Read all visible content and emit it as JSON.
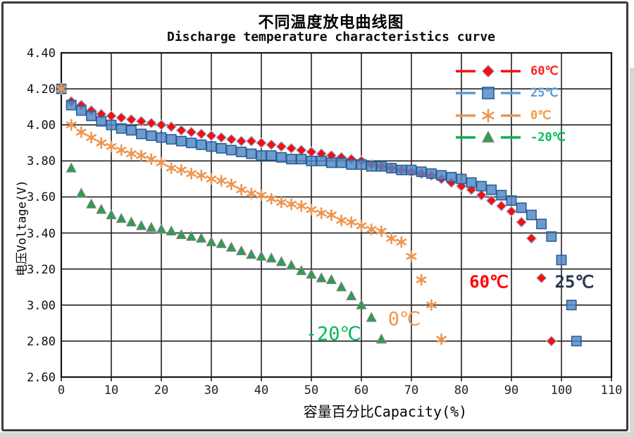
{
  "chart_data": {
    "type": "scatter",
    "title": "不同温度放电曲线图",
    "subtitle": "Discharge temperature characteristics curve",
    "xlabel": "容量百分比Capacity(%)",
    "ylabel": "电压Voltage(V)",
    "xlim": [
      0,
      110
    ],
    "ylim": [
      2.6,
      4.4
    ],
    "x_ticks": [
      "0",
      "10",
      "20",
      "30",
      "40",
      "50",
      "60",
      "70",
      "80",
      "90",
      "100",
      "110"
    ],
    "y_ticks": [
      "4.40",
      "4.20",
      "4.00",
      "3.80",
      "3.60",
      "3.40",
      "3.20",
      "3.00",
      "2.80",
      "2.60"
    ],
    "grid": true,
    "legend_position": "top-right-inside",
    "series": [
      {
        "id": "60c",
        "name": "60℃",
        "marker": "diamond",
        "color": "#f50f0f",
        "edge": "#9dc3e6",
        "x": [
          0,
          2,
          4,
          6,
          8,
          10,
          12,
          14,
          16,
          18,
          20,
          22,
          24,
          26,
          28,
          30,
          32,
          34,
          36,
          38,
          40,
          42,
          44,
          46,
          48,
          50,
          52,
          54,
          56,
          58,
          60,
          62,
          64,
          66,
          68,
          70,
          72,
          74,
          76,
          78,
          80,
          82,
          84,
          86,
          88,
          90,
          92,
          94,
          96,
          98
        ],
        "y": [
          4.2,
          4.13,
          4.11,
          4.08,
          4.06,
          4.05,
          4.04,
          4.03,
          4.02,
          4.01,
          4.0,
          3.99,
          3.97,
          3.96,
          3.95,
          3.94,
          3.93,
          3.92,
          3.91,
          3.91,
          3.9,
          3.89,
          3.88,
          3.87,
          3.86,
          3.85,
          3.84,
          3.83,
          3.82,
          3.81,
          3.8,
          3.78,
          3.77,
          3.76,
          3.75,
          3.74,
          3.73,
          3.72,
          3.7,
          3.68,
          3.66,
          3.64,
          3.61,
          3.58,
          3.55,
          3.52,
          3.46,
          3.37,
          3.15,
          2.8
        ]
      },
      {
        "id": "25c",
        "name": "25℃",
        "marker": "square",
        "color": "#4f86c4",
        "edge": "#2a5f96",
        "x": [
          0,
          2,
          4,
          6,
          8,
          10,
          12,
          14,
          16,
          18,
          20,
          22,
          24,
          26,
          28,
          30,
          32,
          34,
          36,
          38,
          40,
          42,
          44,
          46,
          48,
          50,
          52,
          54,
          56,
          58,
          60,
          62,
          64,
          66,
          68,
          70,
          72,
          74,
          76,
          78,
          80,
          82,
          84,
          86,
          88,
          90,
          92,
          94,
          96,
          98,
          100,
          102,
          103
        ],
        "y": [
          4.2,
          4.11,
          4.08,
          4.05,
          4.02,
          4.0,
          3.98,
          3.97,
          3.95,
          3.94,
          3.93,
          3.92,
          3.91,
          3.9,
          3.89,
          3.88,
          3.87,
          3.86,
          3.85,
          3.84,
          3.83,
          3.83,
          3.82,
          3.81,
          3.81,
          3.8,
          3.8,
          3.79,
          3.79,
          3.78,
          3.78,
          3.77,
          3.77,
          3.76,
          3.75,
          3.75,
          3.74,
          3.73,
          3.72,
          3.71,
          3.7,
          3.68,
          3.66,
          3.64,
          3.61,
          3.58,
          3.54,
          3.5,
          3.45,
          3.38,
          3.25,
          3.0,
          2.8
        ]
      },
      {
        "id": "0c",
        "name": "0℃",
        "marker": "asterisk",
        "color": "#ee9550",
        "edge": "#ee9550",
        "x": [
          0,
          2,
          4,
          6,
          8,
          10,
          12,
          14,
          16,
          18,
          20,
          22,
          24,
          26,
          28,
          30,
          32,
          34,
          36,
          38,
          40,
          42,
          44,
          46,
          48,
          50,
          52,
          54,
          56,
          58,
          60,
          62,
          64,
          66,
          68,
          70,
          72,
          74,
          76
        ],
        "y": [
          4.2,
          4.0,
          3.96,
          3.93,
          3.9,
          3.88,
          3.86,
          3.84,
          3.83,
          3.81,
          3.79,
          3.76,
          3.75,
          3.73,
          3.72,
          3.7,
          3.69,
          3.67,
          3.64,
          3.62,
          3.61,
          3.59,
          3.57,
          3.56,
          3.55,
          3.53,
          3.51,
          3.5,
          3.47,
          3.46,
          3.44,
          3.42,
          3.41,
          3.37,
          3.35,
          3.27,
          3.14,
          3.0,
          2.81
        ]
      },
      {
        "id": "minus20c",
        "name": "-20℃",
        "marker": "triangle",
        "color": "#2e9e50",
        "edge": "#808080",
        "x": [
          2,
          4,
          6,
          8,
          10,
          12,
          14,
          16,
          18,
          20,
          22,
          24,
          26,
          28,
          30,
          32,
          34,
          36,
          38,
          40,
          42,
          44,
          46,
          48,
          50,
          52,
          54,
          56,
          58,
          60,
          62,
          64
        ],
        "y": [
          3.76,
          3.62,
          3.56,
          3.53,
          3.5,
          3.48,
          3.46,
          3.44,
          3.43,
          3.42,
          3.41,
          3.39,
          3.38,
          3.37,
          3.35,
          3.34,
          3.32,
          3.3,
          3.28,
          3.27,
          3.26,
          3.24,
          3.22,
          3.19,
          3.17,
          3.15,
          3.14,
          3.1,
          3.05,
          3.0,
          2.93,
          2.81
        ]
      }
    ],
    "legend": [
      {
        "label": "60℃",
        "text_color": "#ff1f1f",
        "line_color": "#f50f0f",
        "marker": "diamond"
      },
      {
        "label": "25℃",
        "text_color": "#5b9bd5",
        "line_color": "#5b9bd5",
        "marker": "square"
      },
      {
        "label": "0℃",
        "text_color": "#f2994a",
        "line_color": "#e6categories8a2e",
        "marker": "asterisk"
      },
      {
        "label": "-20℃",
        "text_color": "#00c060",
        "line_color": "#00b050",
        "marker": "triangle"
      }
    ],
    "annotations": [
      {
        "text": "60℃",
        "x": 85.5,
        "y": 3.13,
        "color": "#ff0000",
        "bold": true,
        "size": 24
      },
      {
        "text": "25℃",
        "x": 102.6,
        "y": 3.13,
        "color": "#26394f",
        "bold": true,
        "size": 24
      },
      {
        "text": "0℃",
        "x": 68.6,
        "y": 2.92,
        "color": "#f0944c",
        "bold": false,
        "size": 27
      },
      {
        "text": "-20℃",
        "x": 54.4,
        "y": 2.84,
        "color": "#00b956",
        "bold": false,
        "size": 27
      }
    ]
  }
}
